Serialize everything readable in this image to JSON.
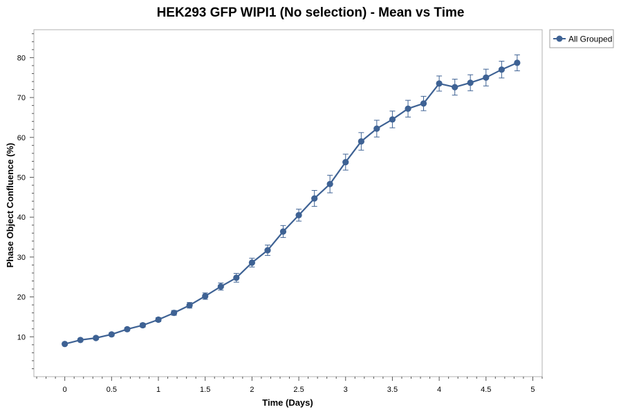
{
  "chart_data": {
    "type": "line",
    "title": "HEK293 GFP WIPI1 (No selection) - Mean vs Time",
    "xlabel": "Time (Days)",
    "ylabel": "Phase Object Confluence (%)",
    "xlim": [
      -0.33,
      5.1
    ],
    "ylim": [
      0,
      87
    ],
    "xticks": [
      0,
      0.5,
      1,
      1.5,
      2,
      2.5,
      3,
      3.5,
      4,
      4.5,
      5
    ],
    "xtick_labels": [
      "0",
      "0.5",
      "1",
      "1.5",
      "2",
      "2.5",
      "3",
      "3.5",
      "4",
      "4.5",
      "5"
    ],
    "yticks": [
      10,
      20,
      30,
      40,
      50,
      60,
      70,
      80
    ],
    "ytick_labels": [
      "10",
      "20",
      "30",
      "40",
      "50",
      "60",
      "70",
      "80"
    ],
    "grid": false,
    "legend_position": "top-right",
    "series": [
      {
        "name": "All Grouped",
        "color": "#3e6294",
        "x": [
          0,
          0.167,
          0.333,
          0.5,
          0.667,
          0.833,
          1,
          1.167,
          1.333,
          1.5,
          1.667,
          1.833,
          2,
          2.167,
          2.333,
          2.5,
          2.667,
          2.833,
          3,
          3.167,
          3.333,
          3.5,
          3.667,
          3.833,
          4,
          4.167,
          4.333,
          4.5,
          4.667,
          4.833
        ],
        "y": [
          8.2,
          9.2,
          9.7,
          10.6,
          11.9,
          12.9,
          14.3,
          16.0,
          17.9,
          20.2,
          22.6,
          24.8,
          28.6,
          31.7,
          36.4,
          40.5,
          44.7,
          48.3,
          53.8,
          59.0,
          62.2,
          64.5,
          67.2,
          68.5,
          73.5,
          72.6,
          73.7,
          75.0,
          77.0,
          78.7
        ],
        "error": [
          0.3,
          0.3,
          0.4,
          0.4,
          0.4,
          0.5,
          0.5,
          0.6,
          0.7,
          0.8,
          0.9,
          1.1,
          1.1,
          1.3,
          1.5,
          1.5,
          2.0,
          2.2,
          2.0,
          2.2,
          2.1,
          2.1,
          2.1,
          1.8,
          1.9,
          2.0,
          2.0,
          2.1,
          2.1,
          2.0
        ]
      }
    ]
  }
}
